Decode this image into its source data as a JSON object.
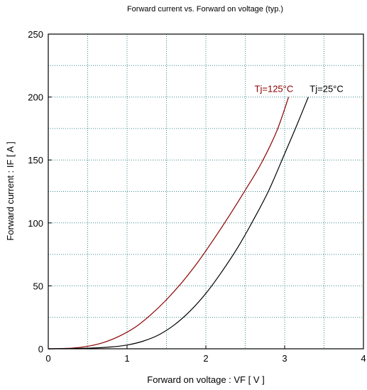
{
  "chart_data": {
    "type": "line",
    "title": "Forward current  vs.  Forward on voltage  (typ.)",
    "xlabel": "Forward on voltage  :  VF  [ V ]",
    "ylabel": "Forward current  :  IF  [ A ]",
    "xlim": [
      0,
      4
    ],
    "ylim": [
      0,
      250
    ],
    "x_ticks": [
      0,
      1,
      2,
      3,
      4
    ],
    "y_ticks": [
      0,
      50,
      100,
      150,
      200,
      250
    ],
    "x_tick_labels": [
      "0",
      "1",
      "2",
      "3",
      "4"
    ],
    "y_tick_labels": [
      "0",
      "50",
      "100",
      "150",
      "200",
      "250"
    ],
    "grid": true,
    "series": [
      {
        "name": "Tj=125°C",
        "color": "#8b0000",
        "x": [
          0,
          0.3,
          0.5,
          0.7,
          0.9,
          1.1,
          1.3,
          1.5,
          1.7,
          1.9,
          2.1,
          2.3,
          2.5,
          2.7,
          2.9,
          3.05
        ],
        "y": [
          0,
          0.5,
          2,
          5,
          10,
          17,
          27,
          39,
          53,
          69,
          87,
          106,
          126,
          147,
          173,
          200
        ]
      },
      {
        "name": "Tj=25°C",
        "color": "#000000",
        "x": [
          0,
          0.5,
          0.8,
          1.0,
          1.2,
          1.4,
          1.6,
          1.8,
          2.0,
          2.2,
          2.4,
          2.6,
          2.8,
          3.0,
          3.15,
          3.3
        ],
        "y": [
          0,
          0.5,
          1.5,
          3,
          6,
          11,
          19,
          30,
          44,
          61,
          80,
          102,
          126,
          155,
          177,
          200
        ]
      }
    ]
  }
}
